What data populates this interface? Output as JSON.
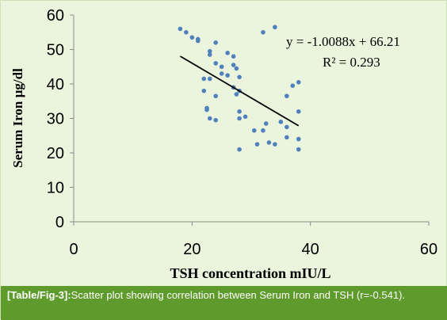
{
  "chart_data": {
    "type": "scatter",
    "title": "",
    "xlabel": "TSH concentration mIU/L",
    "ylabel": "Serum Iron µg/dl",
    "xlim": [
      0,
      60
    ],
    "ylim": [
      0,
      60
    ],
    "xticks": [
      "0",
      "20",
      "40",
      "60"
    ],
    "yticks": [
      "0",
      "10",
      "20",
      "30",
      "40",
      "50",
      "60"
    ],
    "grid": false,
    "point_color": "#4f81bd",
    "trendline": {
      "equation": "y = -1.0088x + 66.21",
      "r_squared": "R² = 0.293",
      "slope": -1.0088,
      "intercept": 66.21,
      "x_range": [
        18,
        38
      ],
      "color": "#000000"
    },
    "points": [
      [
        18,
        56
      ],
      [
        19,
        55
      ],
      [
        20,
        53.5
      ],
      [
        21,
        53
      ],
      [
        21,
        52.5
      ],
      [
        22,
        41.5
      ],
      [
        22,
        38
      ],
      [
        22.5,
        33
      ],
      [
        22.5,
        32.5
      ],
      [
        23,
        49.5
      ],
      [
        23,
        48.5
      ],
      [
        23,
        41.5
      ],
      [
        23,
        30
      ],
      [
        24,
        52
      ],
      [
        24,
        46
      ],
      [
        24,
        36.5
      ],
      [
        24,
        29.5
      ],
      [
        25,
        45
      ],
      [
        25,
        43
      ],
      [
        26,
        42.5
      ],
      [
        26,
        49
      ],
      [
        27,
        48
      ],
      [
        27,
        45.5
      ],
      [
        27,
        39
      ],
      [
        27.5,
        37
      ],
      [
        27.5,
        44.5
      ],
      [
        28,
        42
      ],
      [
        28,
        38
      ],
      [
        28,
        32
      ],
      [
        28,
        30
      ],
      [
        28,
        21
      ],
      [
        29,
        30.5
      ],
      [
        30.5,
        26.5
      ],
      [
        31,
        22.5
      ],
      [
        32,
        26.5
      ],
      [
        32,
        55
      ],
      [
        32.5,
        28.5
      ],
      [
        33,
        23
      ],
      [
        34,
        56.5
      ],
      [
        34,
        22.5
      ],
      [
        35,
        29
      ],
      [
        36,
        24.5
      ],
      [
        36,
        27.5
      ],
      [
        36,
        36.5
      ],
      [
        37,
        39.5
      ],
      [
        38,
        40.5
      ],
      [
        38,
        32
      ],
      [
        38,
        24
      ],
      [
        38,
        21
      ]
    ]
  },
  "caption": {
    "tag": "[Table/Fig-3]:",
    "text": "Scatter plot showing correlation between Serum Iron and TSH (r=-0.541)."
  }
}
